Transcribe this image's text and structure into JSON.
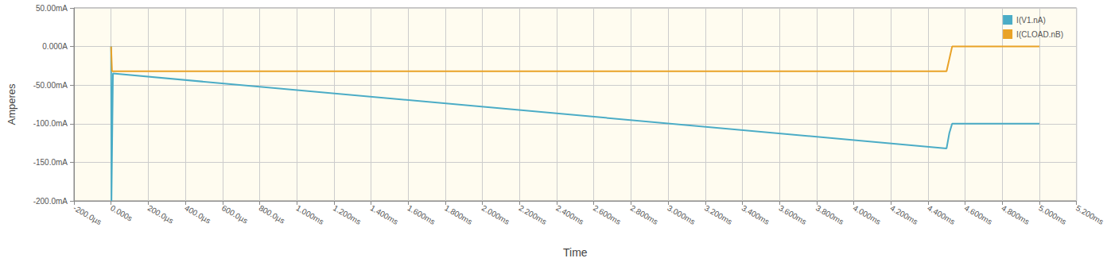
{
  "chart_data": {
    "type": "line",
    "x_label": "Time",
    "y_label": "Amperes",
    "xlim": [
      -0.2,
      5.2
    ],
    "xticks": [
      {
        "value": -0.2,
        "label": "-200.0µs"
      },
      {
        "value": 0,
        "label": "0.000s"
      },
      {
        "value": 0.2,
        "label": "200.0µs"
      },
      {
        "value": 0.4,
        "label": "400.0µs"
      },
      {
        "value": 0.6,
        "label": "600.0µs"
      },
      {
        "value": 0.8,
        "label": "800.0µs"
      },
      {
        "value": 1.0,
        "label": "1.000ms"
      },
      {
        "value": 1.2,
        "label": "1.200ms"
      },
      {
        "value": 1.4,
        "label": "1.400ms"
      },
      {
        "value": 1.6,
        "label": "1.600ms"
      },
      {
        "value": 1.8,
        "label": "1.800ms"
      },
      {
        "value": 2.0,
        "label": "2.000ms"
      },
      {
        "value": 2.2,
        "label": "2.200ms"
      },
      {
        "value": 2.4,
        "label": "2.400ms"
      },
      {
        "value": 2.6,
        "label": "2.600ms"
      },
      {
        "value": 2.8,
        "label": "2.800ms"
      },
      {
        "value": 3.0,
        "label": "3.000ms"
      },
      {
        "value": 3.2,
        "label": "3.200ms"
      },
      {
        "value": 3.4,
        "label": "3.400ms"
      },
      {
        "value": 3.6,
        "label": "3.600ms"
      },
      {
        "value": 3.8,
        "label": "3.800ms"
      },
      {
        "value": 4.0,
        "label": "4.000ms"
      },
      {
        "value": 4.2,
        "label": "4.200ms"
      },
      {
        "value": 4.4,
        "label": "4.400ms"
      },
      {
        "value": 4.6,
        "label": "4.600ms"
      },
      {
        "value": 4.8,
        "label": "4.800ms"
      },
      {
        "value": 5.0,
        "label": "5.000ms"
      },
      {
        "value": 5.2,
        "label": "5.200ms"
      }
    ],
    "ylim": [
      -200,
      50
    ],
    "yticks": [
      {
        "value": -200,
        "label": "-200.0mA"
      },
      {
        "value": -150,
        "label": "-150.0mA"
      },
      {
        "value": -100,
        "label": "-100.0mA"
      },
      {
        "value": -50,
        "label": "-50.00mA"
      },
      {
        "value": 0,
        "label": "0.000A"
      },
      {
        "value": 50,
        "label": "50.00mA"
      }
    ],
    "grid": true,
    "legend": "upper right",
    "series": [
      {
        "name": "I(V1.nA)",
        "color": "#4bacc6",
        "line_style": "solid",
        "x": [
          0,
          0.002,
          0.01,
          4.5,
          4.515,
          4.53,
          5.0
        ],
        "values": [
          0,
          -200,
          -35,
          -132,
          -112,
          -100,
          -100
        ]
      },
      {
        "name": "I(CLOAD.nB)",
        "color": "#e9a227",
        "line_style": "solid",
        "x": [
          0,
          0.005,
          4.5,
          4.53,
          5.0
        ],
        "values": [
          0,
          -32,
          -32,
          0,
          0
        ]
      }
    ]
  }
}
